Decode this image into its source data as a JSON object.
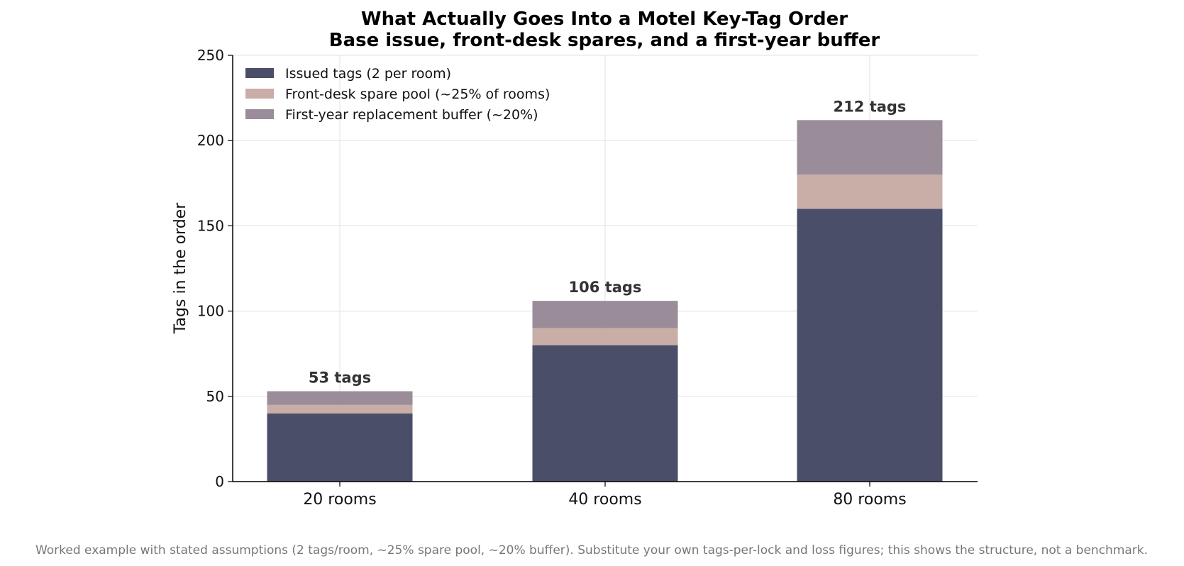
{
  "chart_data": {
    "type": "bar",
    "stacked": true,
    "title": "What Actually Goes Into a Motel Key-Tag Order",
    "subtitle": "Base issue, front-desk spares, and a first-year buffer",
    "xlabel": "",
    "ylabel": "Tags in the order",
    "ylim": [
      0,
      250
    ],
    "yticks": [
      0,
      50,
      100,
      150,
      200,
      250
    ],
    "grid": true,
    "legend_position": "top-left",
    "categories": [
      "20 rooms",
      "40 rooms",
      "80 rooms"
    ],
    "series": [
      {
        "name": "Issued tags (2 per room)",
        "values": [
          40,
          80,
          160
        ],
        "color": "#4a4e69"
      },
      {
        "name": "Front-desk spare pool (~25% of rooms)",
        "values": [
          5,
          10,
          20
        ],
        "color": "#c9ada7"
      },
      {
        "name": "First-year replacement buffer (~20%)",
        "values": [
          8,
          16,
          32
        ],
        "color": "#9a8c98"
      }
    ],
    "totals": [
      "53 tags",
      "106 tags",
      "212 tags"
    ],
    "footnote": "Worked example with stated assumptions (2 tags/room, ~25% spare pool, ~20% buffer). Substitute your own tags-per-lock and loss figures; this shows the structure, not a benchmark."
  }
}
